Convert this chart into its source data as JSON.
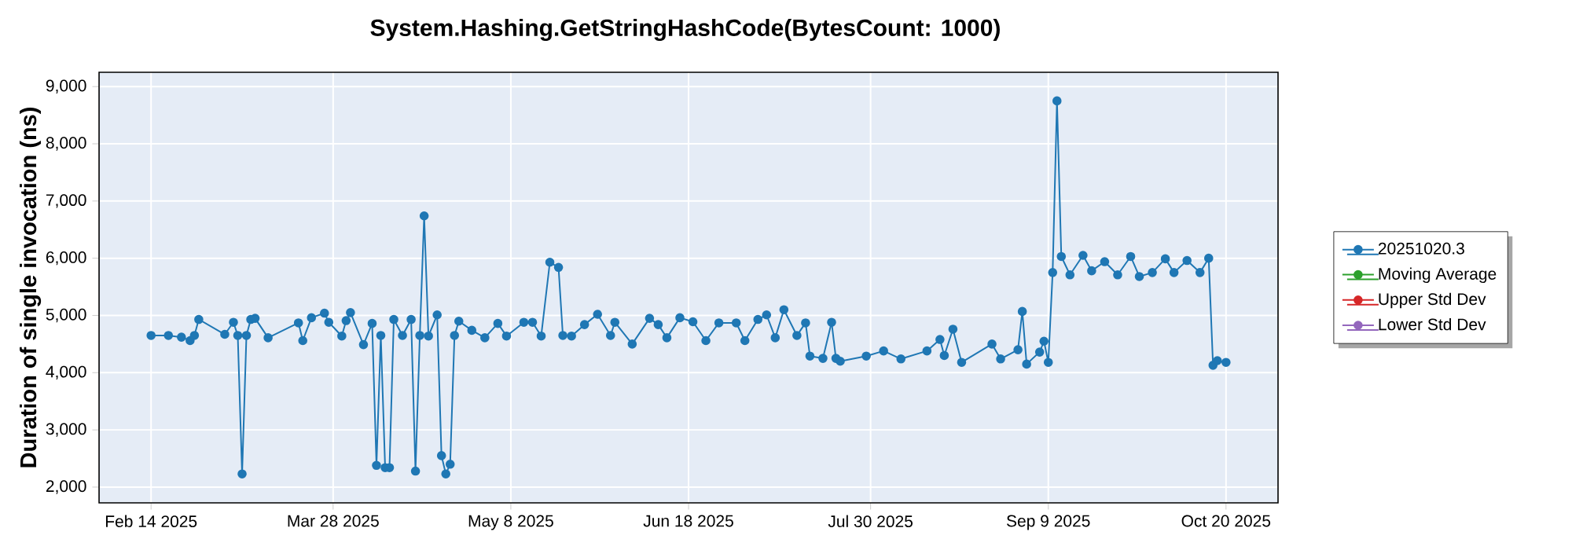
{
  "chart_data": {
    "type": "line",
    "title": "System.Hashing.GetStringHashCode(BytesCount: 1000)",
    "ylabel": "Duration of single invocation (ns)",
    "x": [
      "2025-02-14",
      "2025-02-18",
      "2025-02-21",
      "2025-02-23",
      "2025-02-24",
      "2025-02-25",
      "2025-03-03",
      "2025-03-05",
      "2025-03-06",
      "2025-03-07",
      "2025-03-08",
      "2025-03-09",
      "2025-03-10",
      "2025-03-13",
      "2025-03-20",
      "2025-03-21",
      "2025-03-23",
      "2025-03-26",
      "2025-03-27",
      "2025-03-30",
      "2025-03-31",
      "2025-04-01",
      "2025-04-04",
      "2025-04-06",
      "2025-04-07",
      "2025-04-08",
      "2025-04-09",
      "2025-04-10",
      "2025-04-11",
      "2025-04-13",
      "2025-04-15",
      "2025-04-16",
      "2025-04-17",
      "2025-04-18",
      "2025-04-19",
      "2025-04-21",
      "2025-04-22",
      "2025-04-23",
      "2025-04-24",
      "2025-04-25",
      "2025-04-26",
      "2025-04-29",
      "2025-05-02",
      "2025-05-05",
      "2025-05-07",
      "2025-05-11",
      "2025-05-13",
      "2025-05-15",
      "2025-05-17",
      "2025-05-19",
      "2025-05-20",
      "2025-05-22",
      "2025-05-25",
      "2025-05-28",
      "2025-05-31",
      "2025-06-01",
      "2025-06-05",
      "2025-06-09",
      "2025-06-11",
      "2025-06-13",
      "2025-06-16",
      "2025-06-19",
      "2025-06-22",
      "2025-06-25",
      "2025-06-29",
      "2025-07-01",
      "2025-07-04",
      "2025-07-06",
      "2025-07-08",
      "2025-07-10",
      "2025-07-13",
      "2025-07-15",
      "2025-07-16",
      "2025-07-19",
      "2025-07-21",
      "2025-07-22",
      "2025-07-23",
      "2025-07-29",
      "2025-08-02",
      "2025-08-06",
      "2025-08-12",
      "2025-08-15",
      "2025-08-16",
      "2025-08-18",
      "2025-08-20",
      "2025-08-27",
      "2025-08-29",
      "2025-09-02",
      "2025-09-03",
      "2025-09-04",
      "2025-09-07",
      "2025-09-08",
      "2025-09-09",
      "2025-09-10",
      "2025-09-11",
      "2025-09-12",
      "2025-09-14",
      "2025-09-17",
      "2025-09-19",
      "2025-09-22",
      "2025-09-25",
      "2025-09-28",
      "2025-09-30",
      "2025-10-03",
      "2025-10-06",
      "2025-10-08",
      "2025-10-11",
      "2025-10-14",
      "2025-10-16",
      "2025-10-17",
      "2025-10-18",
      "2025-10-20"
    ],
    "series": [
      {
        "name": "20251020.3",
        "color": "#1f77b4",
        "values": [
          4650,
          4650,
          4620,
          4560,
          4650,
          4930,
          4670,
          4880,
          4650,
          2230,
          4650,
          4930,
          4950,
          4610,
          4870,
          4560,
          4960,
          5040,
          4880,
          4640,
          4910,
          5050,
          4490,
          4860,
          2380,
          4650,
          2340,
          2340,
          4930,
          4650,
          4930,
          2280,
          4650,
          6740,
          4640,
          5010,
          2550,
          2230,
          2400,
          4650,
          4900,
          4740,
          4610,
          4860,
          4640,
          4880,
          4880,
          4640,
          5930,
          5840,
          4650,
          4640,
          4840,
          5020,
          4650,
          4880,
          4500,
          4950,
          4840,
          4610,
          4960,
          4890,
          4560,
          4870,
          4870,
          4560,
          4930,
          5010,
          4610,
          5100,
          4650,
          4870,
          4290,
          4250,
          4880,
          4250,
          4200,
          4290,
          4380,
          4240,
          4380,
          4580,
          4300,
          4760,
          4180,
          4500,
          4240,
          4400,
          5070,
          4150,
          4360,
          4550,
          4180,
          5750,
          8750,
          6030,
          5710,
          6050,
          5780,
          5940,
          5710,
          6030,
          5680,
          5750,
          5990,
          5750,
          5960,
          5750,
          6000,
          4130,
          4210,
          4180
        ]
      },
      {
        "name": "Moving Average",
        "color": "#2ca02c",
        "values": [
          null,
          null,
          null,
          null,
          null,
          null,
          null,
          null,
          null,
          null,
          null,
          null,
          null,
          null,
          null,
          null,
          null,
          null,
          null,
          null,
          null,
          null,
          null,
          null,
          null,
          null,
          null,
          null,
          null,
          null,
          null,
          null,
          null,
          null,
          null,
          null,
          null,
          null,
          null,
          null,
          null,
          null,
          null,
          null,
          null,
          null,
          null,
          null,
          null,
          null,
          null,
          null,
          null,
          null,
          null,
          null,
          null,
          null,
          null,
          null,
          null,
          null,
          null,
          null,
          null,
          null,
          null,
          null,
          null,
          null,
          null,
          null,
          null,
          null,
          null,
          null,
          null,
          null,
          null,
          null,
          null,
          null,
          null,
          null,
          null,
          null,
          null,
          null,
          null,
          null,
          null,
          null,
          null,
          null,
          null,
          null,
          null,
          null,
          null,
          null,
          null,
          null,
          null,
          null,
          null,
          null,
          null,
          null,
          null,
          null,
          null,
          null
        ]
      },
      {
        "name": "Upper Std Dev",
        "color": "#d62728",
        "values": [
          null,
          null,
          null,
          null,
          null,
          null,
          null,
          null,
          null,
          null,
          null,
          null,
          null,
          null,
          null,
          null,
          null,
          null,
          null,
          null,
          null,
          null,
          null,
          null,
          null,
          null,
          null,
          null,
          null,
          null,
          null,
          null,
          null,
          null,
          null,
          null,
          null,
          null,
          null,
          null,
          null,
          null,
          null,
          null,
          null,
          null,
          null,
          null,
          null,
          null,
          null,
          null,
          null,
          null,
          null,
          null,
          null,
          null,
          null,
          null,
          null,
          null,
          null,
          null,
          null,
          null,
          null,
          null,
          null,
          null,
          null,
          null,
          null,
          null,
          null,
          null,
          null,
          null,
          null,
          null,
          null,
          null,
          null,
          null,
          null,
          null,
          null,
          null,
          null,
          null,
          null,
          null,
          null,
          null,
          null,
          null,
          null,
          null,
          null,
          null,
          null,
          null,
          null,
          null,
          null,
          null,
          null,
          null,
          null,
          null,
          null,
          null
        ]
      },
      {
        "name": "Lower Std Dev",
        "color": "#9467bd",
        "values": [
          null,
          null,
          null,
          null,
          null,
          null,
          null,
          null,
          null,
          null,
          null,
          null,
          null,
          null,
          null,
          null,
          null,
          null,
          null,
          null,
          null,
          null,
          null,
          null,
          null,
          null,
          null,
          null,
          null,
          null,
          null,
          null,
          null,
          null,
          null,
          null,
          null,
          null,
          null,
          null,
          null,
          null,
          null,
          null,
          null,
          null,
          null,
          null,
          null,
          null,
          null,
          null,
          null,
          null,
          null,
          null,
          null,
          null,
          null,
          null,
          null,
          null,
          null,
          null,
          null,
          null,
          null,
          null,
          null,
          null,
          null,
          null,
          null,
          null,
          null,
          null,
          null,
          null,
          null,
          null,
          null,
          null,
          null,
          null,
          null,
          null,
          null,
          null,
          null,
          null,
          null,
          null,
          null,
          null,
          null,
          null,
          null,
          null,
          null,
          null,
          null,
          null,
          null,
          null,
          null,
          null,
          null,
          null,
          null,
          null,
          null,
          null
        ]
      }
    ],
    "xlim": [
      "2025-02-02",
      "2025-11-01"
    ],
    "xticks": [
      {
        "value": "2025-02-14",
        "label": "Feb 14 2025"
      },
      {
        "value": "2025-03-28",
        "label": "Mar 28 2025"
      },
      {
        "value": "2025-05-08",
        "label": "May 8 2025"
      },
      {
        "value": "2025-06-18",
        "label": "Jun 18 2025"
      },
      {
        "value": "2025-07-30",
        "label": "Jul 30 2025"
      },
      {
        "value": "2025-09-09",
        "label": "Sep 9 2025"
      },
      {
        "value": "2025-10-20",
        "label": "Oct 20 2025"
      }
    ],
    "ylim": [
      1725,
      9250
    ],
    "yticks": [
      {
        "value": 2000,
        "label": "2,000"
      },
      {
        "value": 3000,
        "label": "3,000"
      },
      {
        "value": 4000,
        "label": "4,000"
      },
      {
        "value": 5000,
        "label": "5,000"
      },
      {
        "value": 6000,
        "label": "6,000"
      },
      {
        "value": 7000,
        "label": "7,000"
      },
      {
        "value": 8000,
        "label": "8,000"
      },
      {
        "value": 9000,
        "label": "9,000"
      }
    ],
    "grid": true,
    "legend": "right",
    "marker": "circle",
    "line_style": "solid"
  }
}
